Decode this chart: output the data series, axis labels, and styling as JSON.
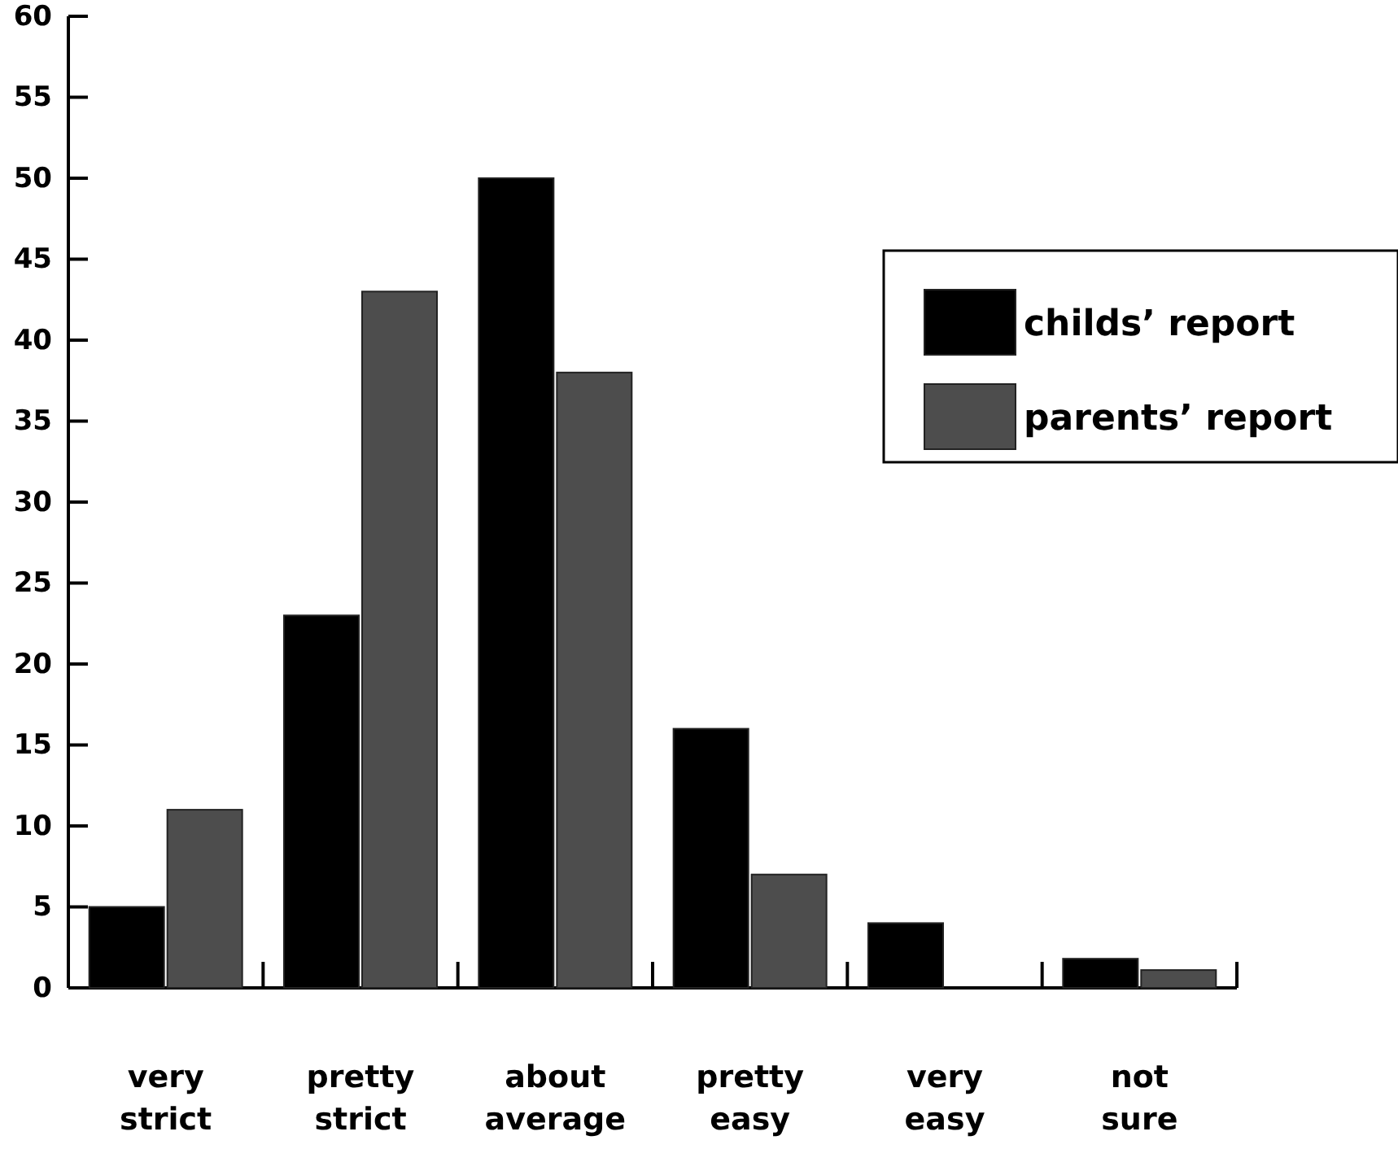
{
  "chart_data": {
    "type": "bar",
    "categories": [
      "very strict",
      "pretty strict",
      "about average",
      "pretty easy",
      "very easy",
      "not sure"
    ],
    "series": [
      {
        "name": "childs’ report",
        "color": "#000000",
        "values": [
          5,
          23,
          50,
          16,
          4,
          1.8
        ]
      },
      {
        "name": "parents’ report",
        "color": "#4d4d4d",
        "values": [
          11,
          43,
          38,
          7,
          0,
          1.1
        ]
      }
    ],
    "ylim": [
      0,
      60
    ],
    "yticks": [
      0,
      5,
      10,
      15,
      20,
      25,
      30,
      35,
      40,
      45,
      50,
      55,
      60
    ],
    "legend": "top right"
  }
}
